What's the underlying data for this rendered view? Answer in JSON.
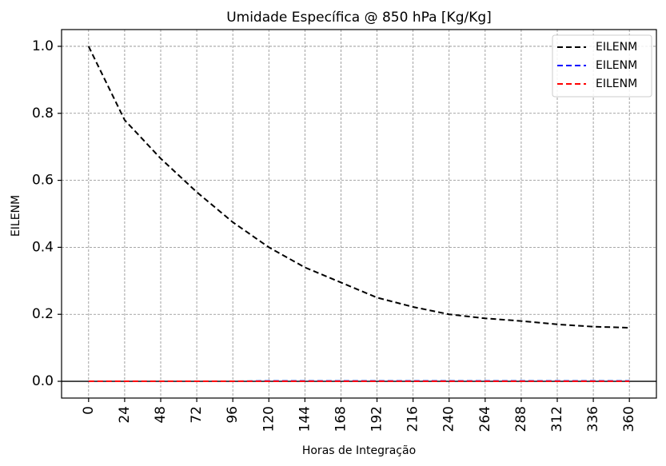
{
  "chart_data": {
    "type": "line",
    "title": "Umidade Específica @ 850 hPa [Kg/Kg]",
    "xlabel": "Horas de Integração",
    "ylabel": "EILENM",
    "xlim": [
      -18,
      378
    ],
    "ylim": [
      -0.05,
      1.05
    ],
    "grid": true,
    "legend_position": "top-right",
    "x_ticks": [
      0,
      24,
      48,
      72,
      96,
      120,
      144,
      168,
      192,
      216,
      240,
      264,
      288,
      312,
      336,
      360
    ],
    "x_tick_labels": [
      "0",
      "24",
      "48",
      "72",
      "96",
      "120",
      "144",
      "168",
      "192",
      "216",
      "240",
      "264",
      "288",
      "312",
      "336",
      "360"
    ],
    "y_ticks": [
      0.0,
      0.2,
      0.4,
      0.6,
      0.8,
      1.0
    ],
    "y_tick_labels": [
      "0.0",
      "0.2",
      "0.4",
      "0.6",
      "0.8",
      "1.0"
    ],
    "horizontal_reference_line": 0.0,
    "x": [
      0,
      24,
      48,
      72,
      96,
      120,
      144,
      168,
      192,
      216,
      240,
      264,
      288,
      312,
      336,
      360
    ],
    "series": [
      {
        "name": "EILENM",
        "color": "#000000",
        "style": "dashed",
        "values": [
          1.0,
          0.78,
          0.665,
          0.565,
          0.475,
          0.4,
          0.34,
          0.295,
          0.25,
          0.222,
          0.2,
          0.188,
          0.18,
          0.17,
          0.163,
          0.16
        ]
      },
      {
        "name": "EILENM",
        "color": "#0000ff",
        "style": "dashed",
        "values": [
          0.0,
          0.0,
          0.0,
          0.0,
          0.0,
          0.001,
          0.001,
          0.001,
          0.001,
          0.001,
          0.001,
          0.001,
          0.001,
          0.001,
          0.001,
          0.001
        ]
      },
      {
        "name": "EILENM",
        "color": "#ff0000",
        "style": "dashed",
        "values": [
          0.0,
          0.0,
          0.0,
          0.0,
          0.0,
          0.0,
          0.0,
          0.0,
          0.0,
          0.0,
          0.0,
          0.0,
          0.0,
          0.0,
          0.0,
          0.0
        ]
      }
    ]
  }
}
